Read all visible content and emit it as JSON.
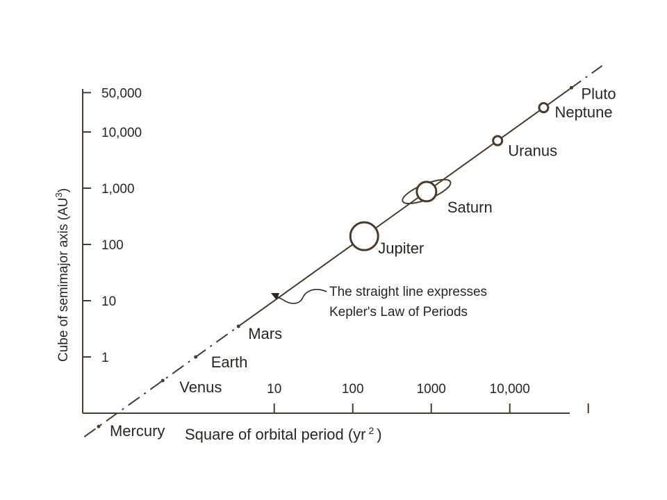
{
  "chart_data": {
    "type": "scatter",
    "title": "",
    "xlabel": "Square of orbital period (yr",
    "xlabel_exp": "2",
    "xlabel_close": ")",
    "ylabel": "Cube of semimajor axis (AU",
    "ylabel_exp": "3",
    "ylabel_close": ")",
    "scale": "log-log",
    "x_ticks": [
      {
        "value": 10,
        "label": "10"
      },
      {
        "value": 100,
        "label": "100"
      },
      {
        "value": 1000,
        "label": "1000"
      },
      {
        "value": 10000,
        "label": "10,000"
      },
      {
        "value": 100000,
        "label": ""
      }
    ],
    "y_ticks": [
      {
        "value": 1,
        "label": "1"
      },
      {
        "value": 10,
        "label": "10"
      },
      {
        "value": 100,
        "label": "100"
      },
      {
        "value": 1000,
        "label": "1,000"
      },
      {
        "value": 10000,
        "label": "10,000"
      },
      {
        "value": 50000,
        "label": "50,000"
      }
    ],
    "points": [
      {
        "name": "Mercury",
        "x": 0.058,
        "y": 0.058,
        "marker": "dot"
      },
      {
        "name": "Venus",
        "x": 0.38,
        "y": 0.38,
        "marker": "dot"
      },
      {
        "name": "Earth",
        "x": 1,
        "y": 1,
        "marker": "dot"
      },
      {
        "name": "Mars",
        "x": 3.5,
        "y": 3.5,
        "marker": "dot"
      },
      {
        "name": "Jupiter",
        "x": 140,
        "y": 140,
        "marker": "large-circle"
      },
      {
        "name": "Saturn",
        "x": 870,
        "y": 870,
        "marker": "ringed-circle"
      },
      {
        "name": "Uranus",
        "x": 7000,
        "y": 7000,
        "marker": "small-circle"
      },
      {
        "name": "Neptune",
        "x": 27000,
        "y": 27000,
        "marker": "small-circle"
      },
      {
        "name": "Pluto",
        "x": 61000,
        "y": 61000,
        "marker": "dot"
      }
    ],
    "fit_line": "y = x",
    "annotation": [
      "The straight line expresses",
      "Kepler's Law of Periods"
    ],
    "colors": {
      "line": "#4a3a2c",
      "text": "#2a2520",
      "background": "#ffffff"
    }
  }
}
